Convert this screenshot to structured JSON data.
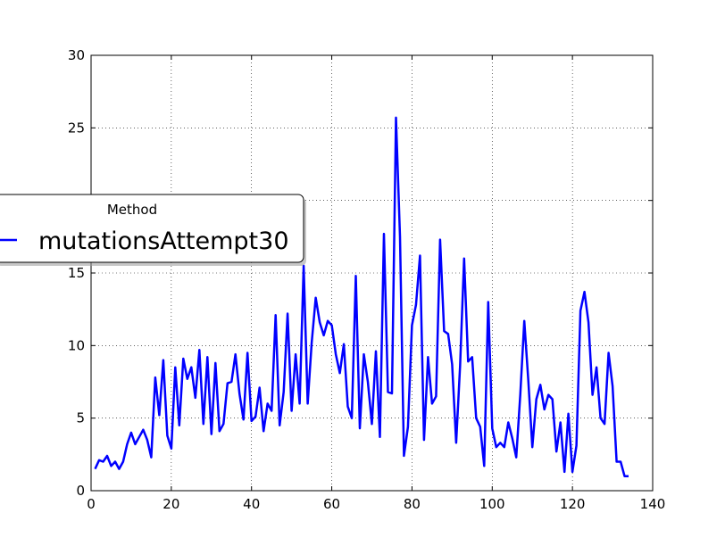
{
  "chart_data": {
    "type": "line",
    "xlim": [
      0,
      140
    ],
    "ylim": [
      0,
      30
    ],
    "x_ticks": [
      "0",
      "20",
      "40",
      "60",
      "80",
      "100",
      "120",
      "140"
    ],
    "y_ticks": [
      "0",
      "5",
      "10",
      "15",
      "20",
      "25",
      "30"
    ],
    "grid": true,
    "legend": {
      "title": "Method",
      "placement": "left"
    },
    "colors": {
      "series": "#0000ff"
    },
    "series": [
      {
        "name": "mutationsAttempt30",
        "x": [
          1,
          2,
          3,
          4,
          5,
          6,
          7,
          8,
          9,
          10,
          11,
          12,
          13,
          14,
          15,
          16,
          17,
          18,
          19,
          20,
          21,
          22,
          23,
          24,
          25,
          26,
          27,
          28,
          29,
          30,
          31,
          32,
          33,
          34,
          35,
          36,
          37,
          38,
          39,
          40,
          41,
          42,
          43,
          44,
          45,
          46,
          47,
          48,
          49,
          50,
          51,
          52,
          53,
          54,
          55,
          56,
          57,
          58,
          59,
          60,
          61,
          62,
          63,
          64,
          65,
          66,
          67,
          68,
          69,
          70,
          71,
          72,
          73,
          74,
          75,
          76,
          77,
          78,
          79,
          80,
          81,
          82,
          83,
          84,
          85,
          86,
          87,
          88,
          89,
          90,
          91,
          92,
          93,
          94,
          95,
          96,
          97,
          98,
          99,
          100,
          101,
          102,
          103,
          104,
          105,
          106,
          107,
          108,
          109,
          110,
          111,
          112,
          113,
          114,
          115,
          116,
          117,
          118,
          119,
          120,
          121,
          122,
          123,
          124,
          125,
          126,
          127,
          128,
          129,
          130,
          131,
          132,
          133,
          134
        ],
        "y": [
          1.5,
          2.1,
          2.0,
          2.4,
          1.7,
          2.0,
          1.5,
          2.0,
          3.2,
          4.0,
          3.2,
          3.7,
          4.2,
          3.5,
          2.3,
          7.8,
          5.2,
          9.0,
          3.8,
          2.9,
          8.5,
          4.5,
          9.1,
          7.7,
          8.5,
          6.4,
          9.7,
          4.6,
          9.2,
          3.9,
          8.8,
          4.1,
          4.6,
          7.4,
          7.5,
          9.4,
          6.7,
          4.9,
          9.5,
          4.8,
          5.1,
          7.1,
          4.1,
          6.0,
          5.5,
          12.1,
          4.5,
          6.8,
          12.2,
          5.5,
          9.4,
          6.0,
          15.5,
          6.0,
          10.2,
          13.3,
          11.6,
          10.7,
          11.7,
          11.4,
          9.4,
          8.1,
          10.1,
          5.8,
          5.0,
          14.8,
          4.3,
          9.4,
          7.5,
          4.6,
          9.6,
          3.7,
          17.7,
          6.8,
          6.7,
          25.7,
          17.5,
          2.4,
          4.4,
          11.4,
          12.8,
          16.2,
          3.5,
          9.2,
          6.0,
          6.5,
          17.3,
          11.0,
          10.8,
          8.7,
          3.3,
          8.6,
          16.0,
          8.9,
          9.2,
          5.0,
          4.4,
          1.7,
          13.0,
          4.3,
          3.0,
          3.3,
          3.0,
          4.7,
          3.6,
          2.3,
          6.6,
          11.7,
          7.6,
          3.0,
          6.3,
          7.3,
          5.6,
          6.6,
          6.3,
          2.7,
          4.7,
          1.3,
          5.3,
          1.3,
          3.1,
          12.4,
          13.7,
          11.6,
          6.6,
          8.5,
          5.0,
          4.6,
          9.5,
          7.2,
          2.0,
          2.0,
          1.0,
          1.0
        ]
      }
    ]
  }
}
